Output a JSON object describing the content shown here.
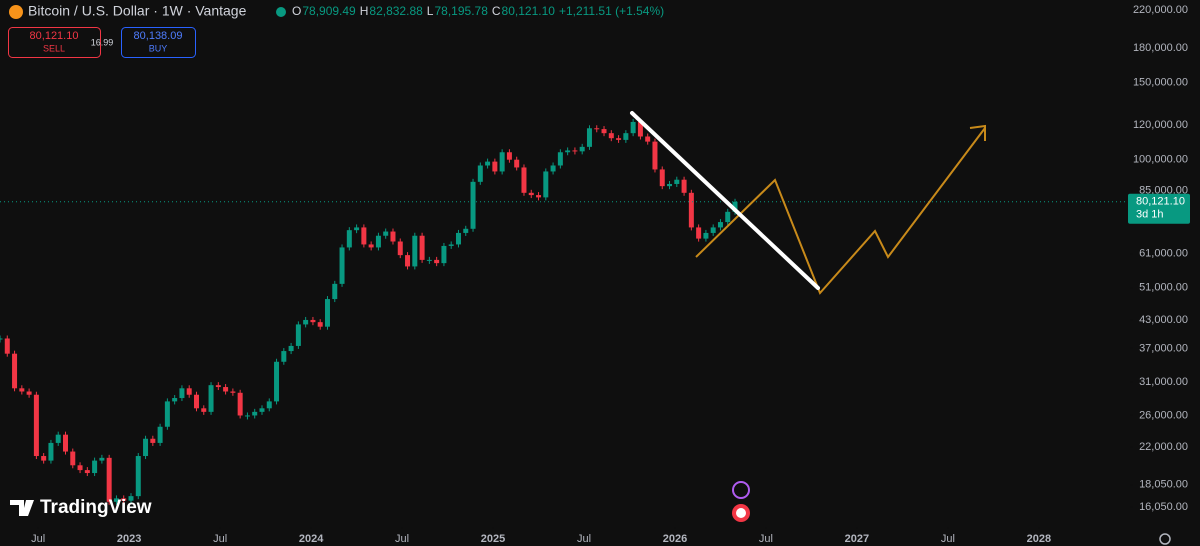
{
  "chart_data": {
    "type": "candlestick",
    "title": "Bitcoin / U.S. Dollar · 1W · Vantage",
    "ohlc_legend": [
      {
        "label": "O",
        "value": "78,909.49"
      },
      {
        "label": "H",
        "value": "82,832.88"
      },
      {
        "label": "L",
        "value": "78,195.78"
      },
      {
        "label": "C",
        "value": "80,121.10"
      }
    ],
    "change": "+1,211.51 (+1.54%)",
    "sell": {
      "price": "80,121.10",
      "label": "SELL"
    },
    "spread": "16.99",
    "buy": {
      "price": "80,138.09",
      "label": "BUY"
    },
    "last_price_label": "80,121.10",
    "countdown": "3d 1h",
    "watermark": "TradingView",
    "up_color": "#089981",
    "down_color": "#f23645",
    "log_scale": true,
    "grid": false,
    "xlim": [
      2022.29,
      2028.49
    ],
    "ylim": [
      14450,
      231900
    ],
    "xticks": [
      {
        "value": 2022.5,
        "label": "Jul"
      },
      {
        "value": 2023,
        "label": "2023"
      },
      {
        "value": 2023.5,
        "label": "Jul"
      },
      {
        "value": 2024,
        "label": "2024"
      },
      {
        "value": 2024.5,
        "label": "Jul"
      },
      {
        "value": 2025,
        "label": "2025"
      },
      {
        "value": 2025.5,
        "label": "Jul"
      },
      {
        "value": 2026,
        "label": "2026"
      },
      {
        "value": 2026.5,
        "label": "Jul"
      },
      {
        "value": 2027,
        "label": "2027"
      },
      {
        "value": 2027.5,
        "label": "Jul"
      },
      {
        "value": 2028,
        "label": "2028"
      }
    ],
    "yticks": [
      {
        "value": 220000,
        "label": "220,000.00"
      },
      {
        "value": 180000,
        "label": "180,000.00"
      },
      {
        "value": 150000,
        "label": "150,000.00"
      },
      {
        "value": 120000,
        "label": "120,000.00"
      },
      {
        "value": 100000,
        "label": "100,000.00"
      },
      {
        "value": 85000,
        "label": "85,000.00"
      },
      {
        "value": 61000,
        "label": "61,000.00"
      },
      {
        "value": 51000,
        "label": "51,000.00"
      },
      {
        "value": 43000,
        "label": "43,000.00"
      },
      {
        "value": 37000,
        "label": "37,000.00"
      },
      {
        "value": 31000,
        "label": "31,000.00"
      },
      {
        "value": 26000,
        "label": "26,000.00"
      },
      {
        "value": 22000,
        "label": "22,000.00"
      },
      {
        "value": 18050,
        "label": "18,050.00"
      },
      {
        "value": 16050,
        "label": "16,050.00"
      }
    ],
    "x": [
      2022.29,
      2022.33,
      2022.37,
      2022.41,
      2022.45,
      2022.49,
      2022.53,
      2022.57,
      2022.61,
      2022.65,
      2022.69,
      2022.73,
      2022.77,
      2022.81,
      2022.85,
      2022.89,
      2022.93,
      2022.97,
      2023.01,
      2023.05,
      2023.09,
      2023.13,
      2023.17,
      2023.21,
      2023.25,
      2023.29,
      2023.33,
      2023.37,
      2023.41,
      2023.45,
      2023.49,
      2023.53,
      2023.57,
      2023.61,
      2023.65,
      2023.69,
      2023.73,
      2023.77,
      2023.81,
      2023.85,
      2023.89,
      2023.93,
      2023.97,
      2024.01,
      2024.05,
      2024.09,
      2024.13,
      2024.17,
      2024.21,
      2024.25,
      2024.29,
      2024.33,
      2024.37,
      2024.41,
      2024.45,
      2024.49,
      2024.53,
      2024.57,
      2024.61,
      2024.65,
      2024.69,
      2024.73,
      2024.77,
      2024.81,
      2024.85,
      2024.89,
      2024.93,
      2024.97,
      2025.01,
      2025.05,
      2025.09,
      2025.13,
      2025.17,
      2025.21,
      2025.25,
      2025.29,
      2025.33,
      2025.37,
      2025.41,
      2025.45,
      2025.49,
      2025.53,
      2025.57,
      2025.61,
      2025.65,
      2025.69,
      2025.73,
      2025.77,
      2025.81,
      2025.85,
      2025.89,
      2025.93,
      2025.97,
      2026.01,
      2026.05,
      2026.09,
      2026.13,
      2026.17,
      2026.21,
      2026.25,
      2026.29,
      2026.33
    ],
    "series": [
      {
        "name": "Close",
        "values": [
          39000,
          36000,
          30000,
          29500,
          29000,
          21000,
          20500,
          22500,
          23500,
          21500,
          20000,
          19500,
          19200,
          20500,
          20800,
          16500,
          16800,
          16600,
          17000,
          21000,
          23000,
          22500,
          24500,
          28000,
          28500,
          30000,
          29000,
          27000,
          26500,
          30500,
          30200,
          29500,
          29300,
          26000,
          26000,
          26500,
          27000,
          28000,
          34500,
          36500,
          37500,
          42000,
          43000,
          42500,
          41500,
          48000,
          52000,
          63000,
          69000,
          70000,
          64000,
          63000,
          67000,
          68500,
          65000,
          60500,
          57000,
          67000,
          59000,
          59000,
          58000,
          63500,
          64000,
          68000,
          69500,
          89000,
          97000,
          99000,
          94000,
          104000,
          100000,
          96000,
          84000,
          83000,
          82000,
          94000,
          97000,
          104000,
          105000,
          104500,
          107000,
          118000,
          117500,
          115000,
          112000,
          111000,
          115000,
          122000,
          113000,
          110000,
          95000,
          87000,
          88000,
          90000,
          84000,
          70000,
          66000,
          68000,
          70000,
          72000,
          76000,
          80121.1
        ]
      }
    ]
  }
}
